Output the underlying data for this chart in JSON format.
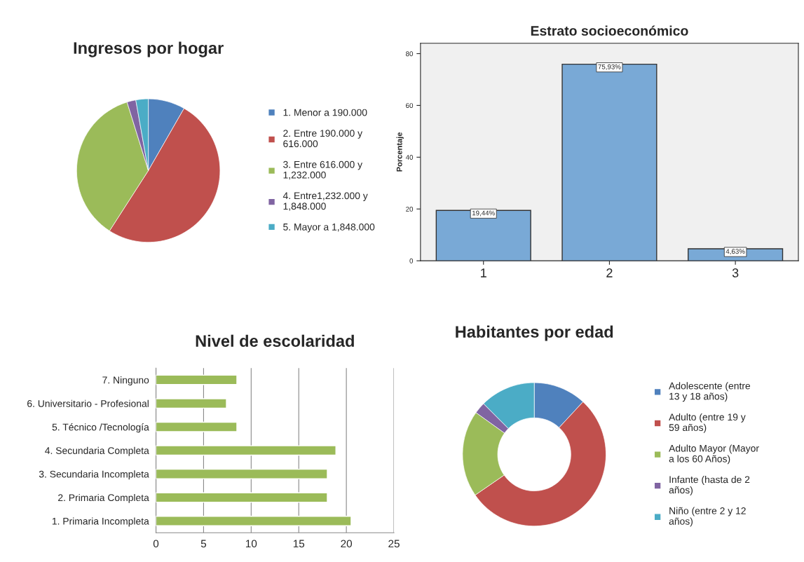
{
  "chart_data": [
    {
      "type": "pie",
      "title": "Ingresos por hogar",
      "categories": [
        "1. Menor a 190.000",
        "2. Entre 190.000 y 616.000",
        "3. Entre 616.000 y 1,232.000",
        "4. Entre1,232.000 y 1,848.000",
        "5. Mayor a 1,848.000"
      ],
      "values": [
        8.3,
        50.8,
        36.1,
        2.0,
        2.8
      ],
      "colors": [
        "#4f81bd",
        "#c0504d",
        "#9bbb59",
        "#8064a2",
        "#4bacc6"
      ],
      "legend": "right"
    },
    {
      "type": "bar",
      "title": "Estrato socioeconómico",
      "ylabel": "Porcentaje",
      "categories": [
        "1",
        "2",
        "3"
      ],
      "values": [
        19.44,
        75.93,
        4.63
      ],
      "value_labels": [
        "19,44%",
        "75,93%",
        "4,63%"
      ],
      "color": "#79a9d6",
      "ylim": [
        0,
        84
      ],
      "yticks": [
        0,
        20,
        40,
        60,
        80
      ]
    },
    {
      "type": "bar",
      "orientation": "horizontal",
      "title": "Nivel de escolaridad",
      "categories": [
        "7. Ninguno",
        "6. Universitario - Profesional",
        "5. Técnico /Tecnología",
        "4. Secundaria Completa",
        "3. Secundaria Incompleta",
        "2. Primaria Completa",
        "1. Primaria Incompleta"
      ],
      "values": [
        8.5,
        7.4,
        8.5,
        18.9,
        18.0,
        18.0,
        20.5
      ],
      "color": "#9bbb59",
      "xlim": [
        0,
        25
      ],
      "xticks": [
        0,
        5,
        10,
        15,
        20,
        25
      ],
      "grid": "x"
    },
    {
      "type": "donut",
      "title": "Habitantes por edad",
      "categories": [
        "Adolescente (entre 13 y 18 años)",
        "Adulto (entre 19 y 59 años)",
        "Adulto Mayor (Mayor a los 60 Años)",
        "Infante (hasta de 2 años)",
        "Niño (entre 2 y 12 años)"
      ],
      "values": [
        11.9,
        53.5,
        19.5,
        2.6,
        12.5
      ],
      "colors": [
        "#4f81bd",
        "#c0504d",
        "#9bbb59",
        "#8064a2",
        "#4bacc6"
      ],
      "legend": "right"
    }
  ]
}
